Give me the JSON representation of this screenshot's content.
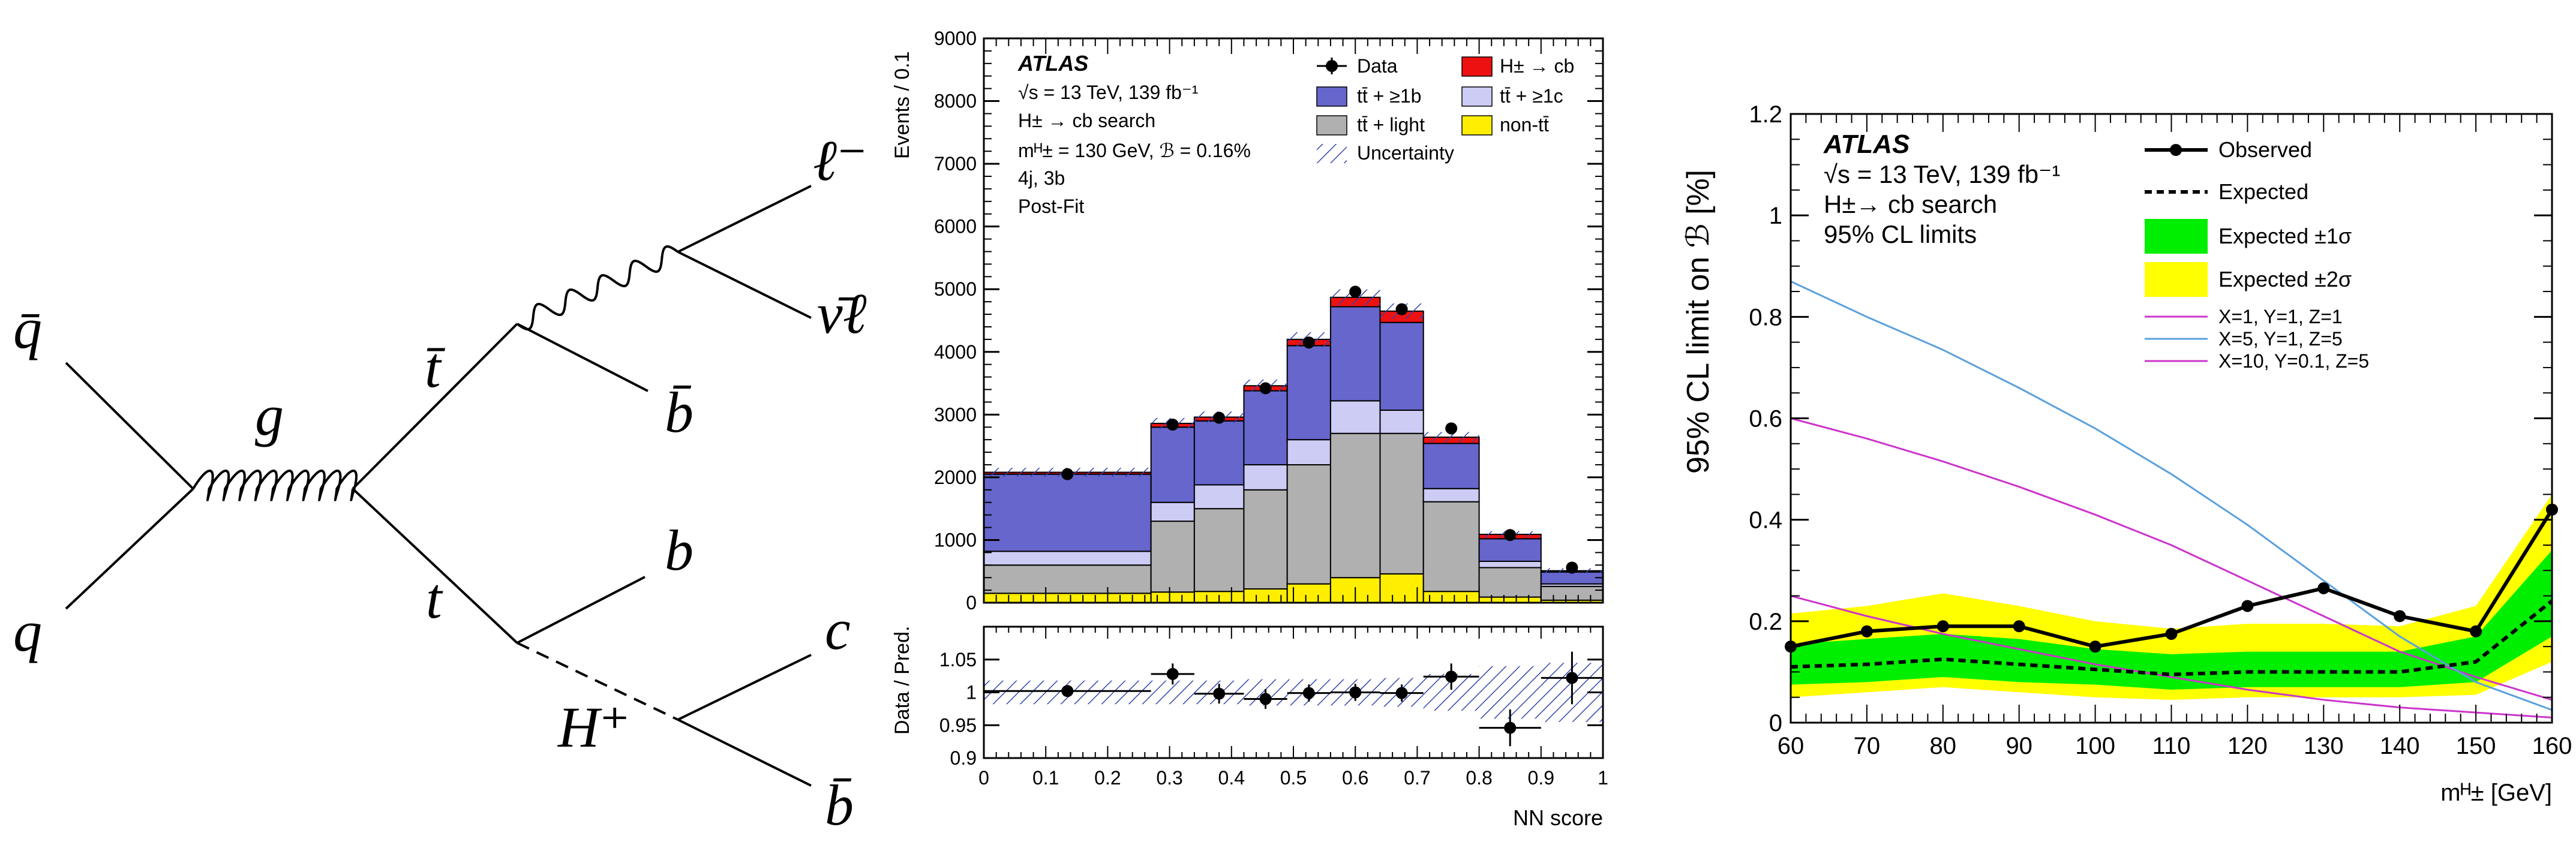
{
  "feynman": {
    "particles": {
      "qbar_in": "q̄",
      "q_in": "q",
      "gluon": "g",
      "tbar": "t̄",
      "t": "t",
      "lepton": "ℓ⁻",
      "neutrino": "ν̄ℓ",
      "bbar_top": "b̄",
      "b": "b",
      "higgs": "H⁺",
      "c": "c",
      "bbar_bottom": "b̄"
    }
  },
  "colors": {
    "hcb": "#ee1111",
    "ttb": "#6666cc",
    "ttc": "#ccccf5",
    "ttlight": "#b0b0b0",
    "nontt": "#ffee00",
    "green": "#00ee00",
    "yellow": "#ffff00",
    "blue": "#5aa0dd",
    "magenta": "#cc33cc"
  },
  "chart_data": [
    {
      "type": "bar",
      "stacked": true,
      "ylabel": "Events / 0.1",
      "xlabel": "NN score",
      "xlim": [
        0,
        1
      ],
      "ylim": [
        0,
        9000
      ],
      "xticks": [
        "0",
        "0.1",
        "0.2",
        "0.3",
        "0.4",
        "0.5",
        "0.6",
        "0.7",
        "0.8",
        "0.9",
        "1"
      ],
      "yticks": [
        "0",
        "1000",
        "2000",
        "3000",
        "4000",
        "5000",
        "6000",
        "7000",
        "8000",
        "9000"
      ],
      "bin_edges": [
        0,
        0.27,
        0.34,
        0.42,
        0.49,
        0.56,
        0.64,
        0.71,
        0.8,
        0.9,
        1.0
      ],
      "series": [
        {
          "name": "non-tt̄",
          "values": [
            150,
            170,
            180,
            220,
            300,
            400,
            460,
            180,
            90,
            40
          ]
        },
        {
          "name": "tt̄ + light",
          "values": [
            450,
            1130,
            1320,
            1580,
            1900,
            2300,
            2240,
            1430,
            470,
            220
          ]
        },
        {
          "name": "tt̄ + ≥1c",
          "values": [
            220,
            300,
            380,
            400,
            400,
            520,
            370,
            210,
            100,
            40
          ]
        },
        {
          "name": "tt̄ + ≥1b",
          "values": [
            1230,
            1200,
            1020,
            1180,
            1500,
            1500,
            1400,
            720,
            360,
            190
          ]
        },
        {
          "name": "H± → cb",
          "values": [
            30,
            60,
            60,
            80,
            100,
            150,
            180,
            100,
            70,
            20
          ]
        }
      ],
      "data_points": {
        "x": [
          0.135,
          0.305,
          0.38,
          0.455,
          0.525,
          0.6,
          0.675,
          0.755,
          0.85,
          0.95
        ],
        "y": [
          2050,
          2840,
          2950,
          3420,
          4150,
          4960,
          4680,
          2780,
          1080,
          560
        ]
      },
      "legend": [
        {
          "label": "Data",
          "kind": "marker"
        },
        {
          "label": "H± → cb",
          "kind": "box",
          "color": "hcb"
        },
        {
          "label": "tt̄ + ≥1b",
          "kind": "box",
          "color": "ttb"
        },
        {
          "label": "tt̄ + ≥1c",
          "kind": "box",
          "color": "ttc"
        },
        {
          "label": "tt̄ + light",
          "kind": "box",
          "color": "ttlight"
        },
        {
          "label": "non-tt̄",
          "kind": "box",
          "color": "nontt"
        },
        {
          "label": "Uncertainty",
          "kind": "hatch"
        }
      ],
      "annotations": {
        "experiment": "ATLAS",
        "energy": "√s = 13 TeV, 139 fb⁻¹",
        "search": "H± → cb search",
        "params": "mᴴ± = 130 GeV, ℬ = 0.16%",
        "region": "4j, 3b",
        "fit": "Post-Fit"
      }
    },
    {
      "type": "scatter",
      "ylabel": "Data / Pred.",
      "xlabel": "NN score",
      "xlim": [
        0,
        1
      ],
      "ylim": [
        0.9,
        1.1
      ],
      "yticks": [
        "0.9",
        "0.95",
        "1",
        "1.05"
      ],
      "x": [
        0.135,
        0.305,
        0.38,
        0.455,
        0.525,
        0.6,
        0.675,
        0.755,
        0.85,
        0.95
      ],
      "y": [
        1.002,
        1.028,
        0.998,
        0.99,
        0.999,
        1.0,
        0.999,
        1.024,
        0.946,
        1.022
      ],
      "xerr_low": [
        0.135,
        0.035,
        0.04,
        0.035,
        0.035,
        0.04,
        0.035,
        0.045,
        0.05,
        0.05
      ],
      "yerr": [
        0.006,
        0.016,
        0.015,
        0.015,
        0.013,
        0.013,
        0.013,
        0.02,
        0.028,
        0.04
      ],
      "band": [
        0.018,
        0.018,
        0.018,
        0.02,
        0.02,
        0.02,
        0.022,
        0.028,
        0.04,
        0.045
      ]
    },
    {
      "type": "line",
      "ylabel": "95% CL limit on ℬ [%]",
      "xlabel": "mᴴ± [GeV]",
      "xlim": [
        60,
        160
      ],
      "ylim": [
        0,
        1.2
      ],
      "xticks": [
        "60",
        "70",
        "80",
        "90",
        "100",
        "110",
        "120",
        "130",
        "140",
        "150",
        "160"
      ],
      "yticks": [
        "0",
        "0.2",
        "0.4",
        "0.6",
        "0.8",
        "1",
        "1.2"
      ],
      "x": [
        60,
        70,
        80,
        90,
        100,
        110,
        120,
        130,
        140,
        150,
        160
      ],
      "observed": [
        0.15,
        0.18,
        0.19,
        0.19,
        0.15,
        0.175,
        0.23,
        0.265,
        0.21,
        0.18,
        0.42
      ],
      "expected": [
        0.11,
        0.115,
        0.125,
        0.115,
        0.105,
        0.095,
        0.1,
        0.1,
        0.1,
        0.12,
        0.24
      ],
      "band1_low": [
        0.075,
        0.08,
        0.09,
        0.08,
        0.075,
        0.065,
        0.07,
        0.07,
        0.07,
        0.08,
        0.17
      ],
      "band1_high": [
        0.155,
        0.165,
        0.175,
        0.165,
        0.145,
        0.135,
        0.14,
        0.14,
        0.14,
        0.17,
        0.34
      ],
      "band2_low": [
        0.05,
        0.06,
        0.07,
        0.06,
        0.05,
        0.045,
        0.05,
        0.05,
        0.05,
        0.055,
        0.12
      ],
      "band2_high": [
        0.215,
        0.23,
        0.255,
        0.23,
        0.2,
        0.185,
        0.195,
        0.195,
        0.19,
        0.23,
        0.45
      ],
      "benchmarks": [
        {
          "name": "X=1, Y=1, Z=1",
          "color": "magenta",
          "y": [
            0.6,
            0.56,
            0.515,
            0.465,
            0.41,
            0.35,
            0.28,
            0.21,
            0.14,
            0.09,
            0.045
          ]
        },
        {
          "name": "X=5, Y=1, Z=5",
          "color": "blue",
          "y": [
            0.87,
            0.8,
            0.735,
            0.66,
            0.58,
            0.49,
            0.39,
            0.28,
            0.17,
            0.08,
            0.025
          ]
        },
        {
          "name": "X=10, Y=0.1, Z=5",
          "color": "magenta",
          "y": [
            0.25,
            0.21,
            0.175,
            0.145,
            0.115,
            0.09,
            0.065,
            0.045,
            0.03,
            0.02,
            0.01
          ]
        }
      ],
      "legend": [
        "Observed",
        "Expected",
        "Expected ±1σ",
        "Expected ±2σ"
      ],
      "annotations": {
        "experiment": "ATLAS",
        "energy": "√s = 13 TeV, 139 fb⁻¹",
        "search": "H±→ cb search",
        "cl": "95% CL limits"
      }
    }
  ]
}
